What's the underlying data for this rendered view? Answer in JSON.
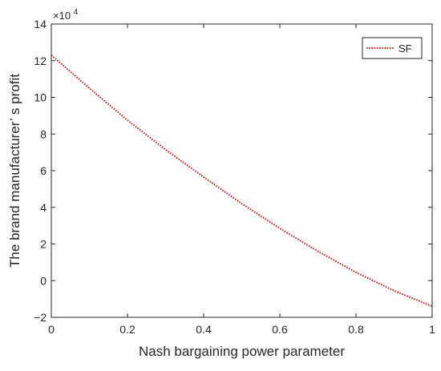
{
  "chart_data": {
    "type": "line",
    "title": "",
    "xlabel": "Nash bargaining power parameter",
    "ylabel": "The brand manufacturer’ s profit",
    "xlim": [
      0,
      1
    ],
    "ylim": [
      -2,
      14
    ],
    "y_multiplier": "×10",
    "y_multiplier_exp": "4",
    "xticks": [
      0,
      0.2,
      0.4,
      0.6,
      0.8,
      1
    ],
    "xtick_labels": [
      "0",
      "0.2",
      "0.4",
      "0.6",
      "0.8",
      "1"
    ],
    "yticks": [
      -2,
      0,
      2,
      4,
      6,
      8,
      10,
      12,
      14
    ],
    "ytick_labels": [
      "−2",
      "0",
      "2",
      "4",
      "6",
      "8",
      "10",
      "12",
      "14"
    ],
    "grid": false,
    "legend_position": "top-right",
    "series": [
      {
        "name": "SF",
        "color": "#e41a1c",
        "line_style": "dotted",
        "x": [
          0,
          0.1,
          0.2,
          0.3,
          0.4,
          0.5,
          0.6,
          0.7,
          0.8,
          0.9,
          1.0
        ],
        "y": [
          12.3,
          10.5,
          8.75,
          7.15,
          5.65,
          4.2,
          2.85,
          1.6,
          0.45,
          -0.55,
          -1.4
        ]
      }
    ]
  }
}
